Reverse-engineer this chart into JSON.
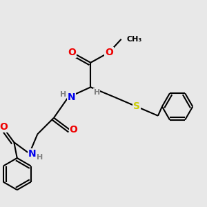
{
  "bg_color": "#e8e8e8",
  "atom_colors": {
    "O": "#ee0000",
    "N": "#0000ee",
    "S": "#cccc00",
    "C": "#000000",
    "H": "#808080"
  },
  "bond_color": "#000000",
  "bond_width": 1.5,
  "font_size_atom": 10,
  "font_size_h": 8,
  "font_size_ch3": 8
}
